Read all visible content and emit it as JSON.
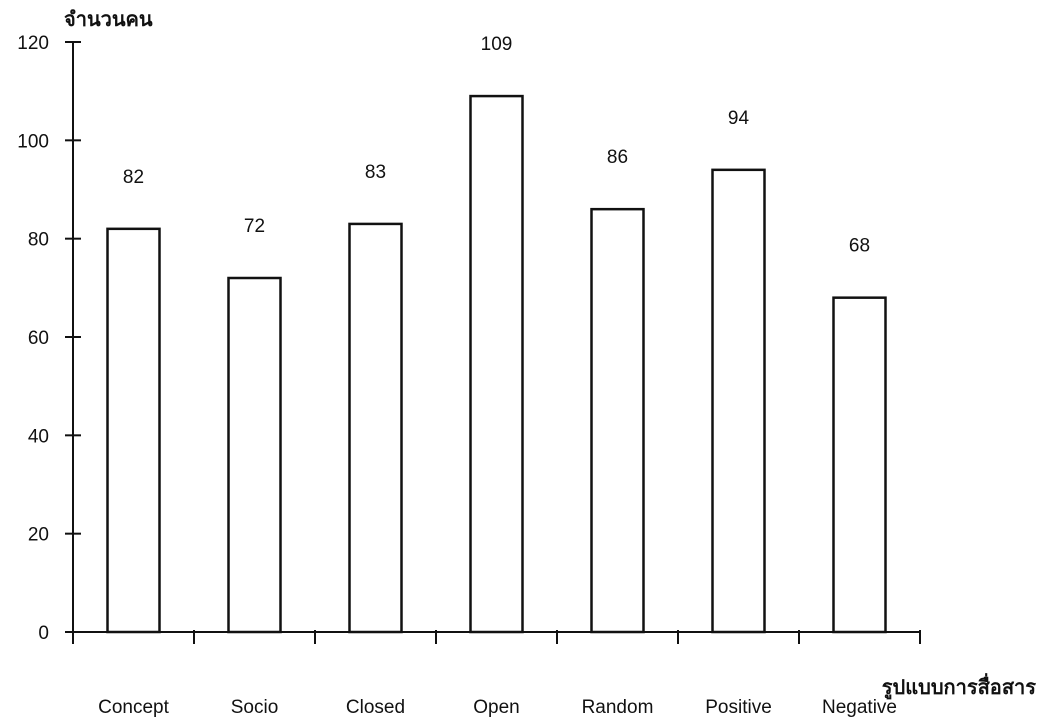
{
  "chart_data": {
    "type": "bar",
    "ylabel": "จำนวนคน",
    "xlabel": "รูปแบบการสื่อสาร",
    "categories": [
      "Concept",
      "Socio",
      "Closed",
      "Open",
      "Random",
      "Positive",
      "Negative"
    ],
    "values": [
      82,
      72,
      83,
      109,
      86,
      94,
      68
    ],
    "data_labels": [
      "82",
      "72",
      "83",
      "109",
      "86",
      "94",
      "68"
    ],
    "yticks": [
      "0",
      "20",
      "40",
      "60",
      "80",
      "100",
      "120"
    ],
    "ylim": [
      0,
      120
    ],
    "grid": false,
    "legend": "none",
    "bar_fill": "#ffffff",
    "bar_stroke": "#111111"
  }
}
